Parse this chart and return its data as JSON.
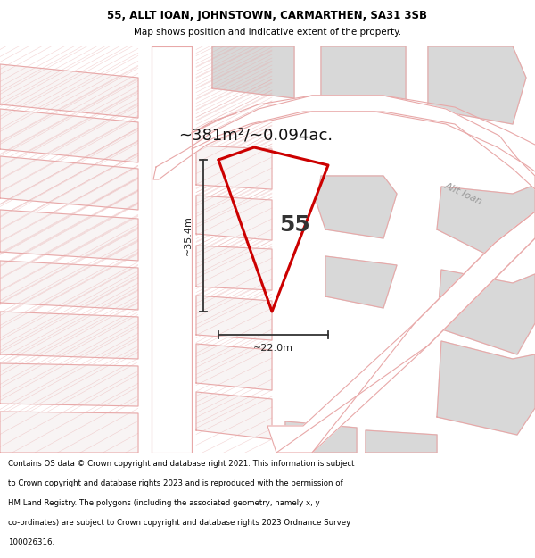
{
  "title_line1": "55, ALLT IOAN, JOHNSTOWN, CARMARTHEN, SA31 3SB",
  "title_line2": "Map shows position and indicative extent of the property.",
  "area_text": "~381m²/~0.094ac.",
  "property_number": "55",
  "dim_width": "~22.0m",
  "dim_height": "~35.4m",
  "street_name": "Allt Ioan",
  "footer_text": "Contains OS data © Crown copyright and database right 2021. This information is subject to Crown copyright and database rights 2023 and is reproduced with the permission of HM Land Registry. The polygons (including the associated geometry, namely x, y co-ordinates) are subject to Crown copyright and database rights 2023 Ordnance Survey 100026316.",
  "bg_color": "#f8f4f4",
  "map_bg": "#f8f4f4",
  "plot_line_color": "#cc0000",
  "bg_poly_fill": "#d8d8d8",
  "road_line_color": "#e8a8a8",
  "footer_bg": "#ffffff",
  "title_bg": "#ffffff",
  "title_fontsize": 8.5,
  "subtitle_fontsize": 7.5,
  "area_fontsize": 13,
  "number_fontsize": 18,
  "dim_fontsize": 8,
  "street_fontsize": 8,
  "footer_fontsize": 6.2
}
